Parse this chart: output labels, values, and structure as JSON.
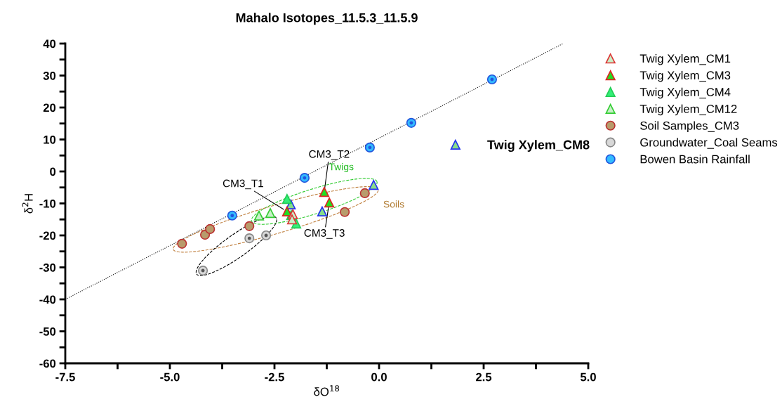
{
  "chart_data": {
    "type": "scatter",
    "title": "Mahalo Isotopes_11.5.3_11.5.9",
    "xlabel": "δO$^{18}$",
    "ylabel": "δ$^{2}$H",
    "xlim": [
      -7.5,
      5.0
    ],
    "ylim": [
      -60,
      40
    ],
    "xticks": [
      {
        "value": -7.5,
        "label": "-7.5"
      },
      {
        "value": -6.25,
        "label": null
      },
      {
        "value": -5.0,
        "label": "-5.0"
      },
      {
        "value": -3.75,
        "label": null
      },
      {
        "value": -2.5,
        "label": "-2.5"
      },
      {
        "value": -1.25,
        "label": null
      },
      {
        "value": 0.0,
        "label": "0.0"
      },
      {
        "value": 1.25,
        "label": null
      },
      {
        "value": 2.5,
        "label": "2.5"
      },
      {
        "value": 3.75,
        "label": null
      },
      {
        "value": 5.0,
        "label": "5.0"
      }
    ],
    "yticks": [
      -60,
      {
        "value": -55,
        "label": null
      },
      -50,
      {
        "value": -45,
        "label": null
      },
      -40,
      {
        "value": -35,
        "label": null
      },
      -30,
      {
        "value": -25,
        "label": null
      },
      -20,
      {
        "value": -15,
        "label": null
      },
      -10,
      {
        "value": -5,
        "label": null
      },
      0,
      {
        "value": 5,
        "label": null
      },
      10,
      {
        "value": 15,
        "label": null
      },
      20,
      {
        "value": 25,
        "label": null
      },
      30,
      {
        "value": 35,
        "label": null
      },
      40
    ],
    "grid": false,
    "legend": "right",
    "series": [
      {
        "name": "Twig Xylem_CM1",
        "color": "#c8f0c8",
        "marker": "triangle",
        "x": [
          -2.06,
          -2.08
        ],
        "values": [
          -13.4,
          -15.0
        ]
      },
      {
        "name": "Twig Xylem_CM3",
        "color": "#22dd22",
        "marker": "triangle",
        "x": [
          -2.2,
          -1.31,
          -1.19
        ],
        "values": [
          -12.5,
          -6.4,
          -9.7
        ]
      },
      {
        "name": "Twig Xylem_CM4",
        "color": "#33ee77",
        "marker": "triangle",
        "x": [
          -2.2,
          -2.1,
          -1.98
        ],
        "values": [
          -8.6,
          -13.6,
          -16.3
        ]
      },
      {
        "name": "Twig Xylem_CM12",
        "color": "#c8f0c8",
        "marker": "triangle",
        "x": [
          -2.87,
          -2.6
        ],
        "values": [
          -13.8,
          -13.0
        ]
      },
      {
        "name": "Soil Samples_CM3",
        "color": "#b89c6c",
        "marker": "circle",
        "x": [
          -4.71,
          -4.16,
          -4.04,
          -3.1,
          -0.82,
          -0.34
        ],
        "values": [
          -22.6,
          -19.8,
          -18.0,
          -17.1,
          -12.7,
          -6.8
        ]
      },
      {
        "name": "Groundwater_Coal Seams",
        "color": "#d8d8d8",
        "marker": "circle",
        "x": [
          -4.21,
          -3.1,
          -2.7
        ],
        "values": [
          -31.0,
          -20.9,
          -20.0
        ]
      },
      {
        "name": "Bowen Basin Rainfall",
        "color": "#33bbff",
        "marker": "circle",
        "x": [
          -3.51,
          -1.78,
          -0.22,
          0.77,
          2.7
        ],
        "values": [
          -13.8,
          -2.0,
          7.5,
          15.2,
          28.8
        ]
      },
      {
        "name": "Twig Xylem_CM8",
        "color": "#88dd88",
        "marker": "triangle",
        "x": [
          -2.11,
          -1.36,
          -0.13
        ],
        "values": [
          -10.3,
          -12.5,
          -4.2
        ]
      },
      {
        "type": "line",
        "color": "#000000",
        "line_style": "dotted",
        "marker": "none",
        "x": [
          -7.5,
          4.4
        ],
        "values": [
          -40,
          40
        ]
      }
    ],
    "annotations": [
      {
        "text": "CM3_T1",
        "x": -2.2,
        "y": -12.5
      },
      {
        "text": "CM3_T2",
        "x": -1.31,
        "y": -6.4
      },
      {
        "text": "CM3_T3",
        "x": -1.19,
        "y": -9.7
      },
      "Twigs",
      "Soils"
    ]
  }
}
